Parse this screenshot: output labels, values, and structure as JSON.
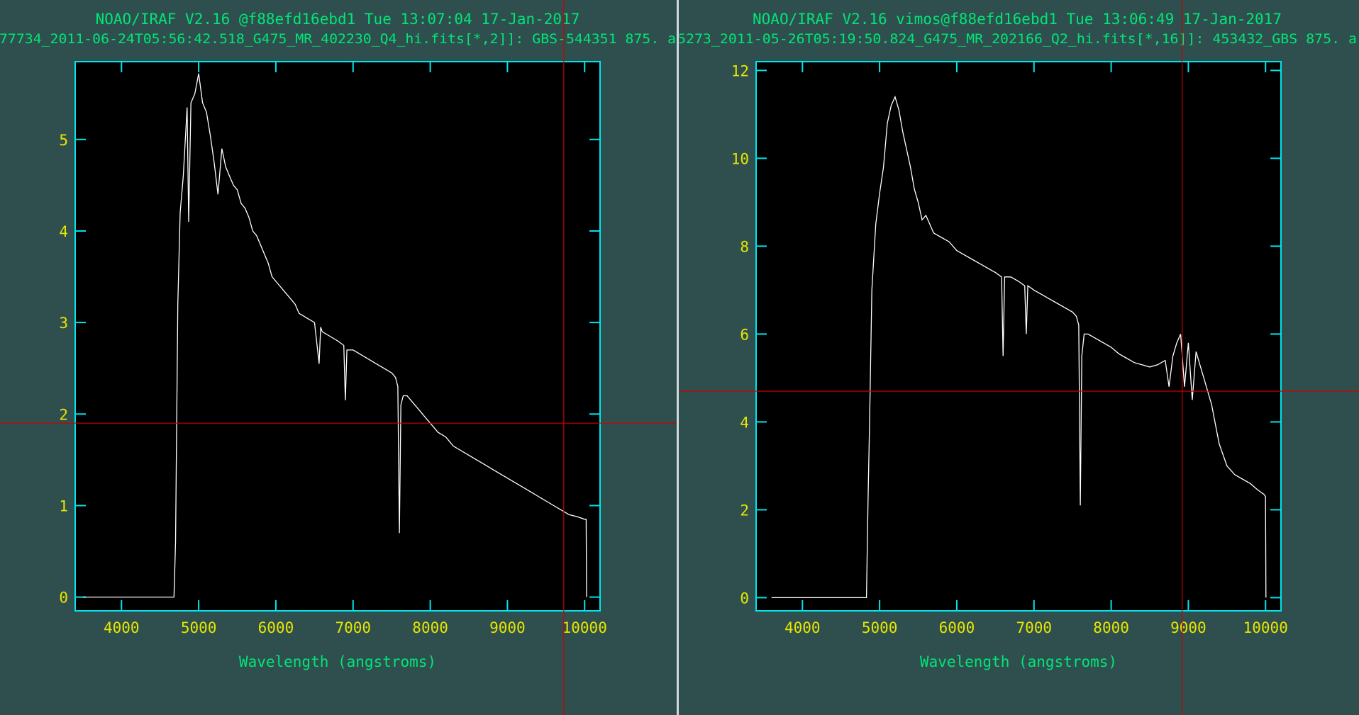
{
  "panels": [
    {
      "header": "NOAO/IRAF V2.16 @f88efd16ebd1 Tue 13:07:04 17-Jan-2017",
      "subtitle": "77734_2011-06-24T05:56:42.518_G475_MR_402230_Q4_hi.fits[*,2]]: GBS-544351 875. a",
      "xlabel": "Wavelength (angstroms)",
      "xticks": [
        "4000",
        "5000",
        "6000",
        "7000",
        "8000",
        "9000",
        "10000"
      ],
      "yticks": [
        "0",
        "1",
        "2",
        "3",
        "4",
        "5"
      ],
      "cursor": {
        "x": 9730,
        "y": 1.9
      }
    },
    {
      "header": "NOAO/IRAF V2.16 vimos@f88efd16ebd1 Tue 13:06:49 17-Jan-2017",
      "subtitle": "5273_2011-05-26T05:19:50.824_G475_MR_202166_Q2_hi.fits[*,16]]: 453432_GBS 875. a",
      "xlabel": "Wavelength (angstroms)",
      "xticks": [
        "4000",
        "5000",
        "6000",
        "7000",
        "8000",
        "9000",
        "10000"
      ],
      "yticks": [
        "0",
        "2",
        "4",
        "6",
        "8",
        "10",
        "12"
      ],
      "cursor": {
        "x": 8920,
        "y": 4.7
      }
    }
  ],
  "colors": {
    "background": "#2f4f4f",
    "plot_area": "#000000",
    "frame": "#00e5ee",
    "tick_label": "#e6e600",
    "header_text": "#00e676",
    "xlabel_text": "#00e676",
    "data_line": "#ffffff",
    "cursor": "#cc0000"
  },
  "chart_data": [
    {
      "type": "line",
      "xlim": [
        3400,
        10200
      ],
      "ylim": [
        -0.15,
        5.85
      ],
      "x": [
        3500,
        4000,
        4500,
        4680,
        4700,
        4730,
        4760,
        4800,
        4850,
        4870,
        4900,
        4950,
        5000,
        5050,
        5100,
        5150,
        5200,
        5250,
        5300,
        5350,
        5400,
        5450,
        5500,
        5550,
        5600,
        5650,
        5700,
        5750,
        5800,
        5850,
        5900,
        5950,
        6000,
        6050,
        6100,
        6150,
        6200,
        6250,
        6300,
        6400,
        6500,
        6560,
        6580,
        6600,
        6700,
        6800,
        6880,
        6900,
        6920,
        7000,
        7100,
        7200,
        7300,
        7400,
        7500,
        7550,
        7580,
        7600,
        7620,
        7650,
        7700,
        7750,
        7800,
        7850,
        7900,
        7950,
        8000,
        8100,
        8200,
        8300,
        8400,
        8500,
        8600,
        8700,
        8800,
        8900,
        9000,
        9100,
        9200,
        9300,
        9400,
        9500,
        9600,
        9700,
        9800,
        9900,
        10000,
        10020,
        10025
      ],
      "y": [
        0,
        0,
        0,
        0,
        0.6,
        3.2,
        4.2,
        4.6,
        5.35,
        4.1,
        5.4,
        5.5,
        5.72,
        5.4,
        5.3,
        5.05,
        4.75,
        4.4,
        4.9,
        4.7,
        4.6,
        4.5,
        4.45,
        4.3,
        4.25,
        4.15,
        4.0,
        3.95,
        3.85,
        3.75,
        3.65,
        3.5,
        3.45,
        3.4,
        3.35,
        3.3,
        3.25,
        3.2,
        3.1,
        3.05,
        3.0,
        2.55,
        2.95,
        2.9,
        2.85,
        2.8,
        2.75,
        2.15,
        2.7,
        2.7,
        2.65,
        2.6,
        2.55,
        2.5,
        2.45,
        2.4,
        2.3,
        0.7,
        2.1,
        2.2,
        2.2,
        2.15,
        2.1,
        2.05,
        2.0,
        1.95,
        1.9,
        1.8,
        1.75,
        1.65,
        1.6,
        1.55,
        1.5,
        1.45,
        1.4,
        1.35,
        1.3,
        1.25,
        1.2,
        1.15,
        1.1,
        1.05,
        1.0,
        0.95,
        0.9,
        0.88,
        0.85,
        0.85,
        0
      ]
    },
    {
      "type": "line",
      "xlim": [
        3400,
        10200
      ],
      "ylim": [
        -0.3,
        12.2
      ],
      "x": [
        3600,
        4000,
        4500,
        4830,
        4850,
        4870,
        4900,
        4950,
        5000,
        5050,
        5100,
        5150,
        5200,
        5250,
        5300,
        5350,
        5400,
        5450,
        5500,
        5550,
        5600,
        5650,
        5700,
        5800,
        5900,
        6000,
        6100,
        6200,
        6300,
        6400,
        6500,
        6580,
        6600,
        6620,
        6700,
        6800,
        6880,
        6900,
        6920,
        7000,
        7100,
        7200,
        7300,
        7400,
        7500,
        7550,
        7580,
        7600,
        7620,
        7650,
        7700,
        7800,
        7900,
        8000,
        8100,
        8200,
        8300,
        8400,
        8500,
        8600,
        8700,
        8750,
        8800,
        8850,
        8900,
        8950,
        9000,
        9050,
        9100,
        9150,
        9200,
        9300,
        9400,
        9500,
        9600,
        9700,
        9800,
        9900,
        9980,
        10000,
        10005
      ],
      "y": [
        0,
        0,
        0,
        0,
        2.2,
        4.0,
        7.0,
        8.5,
        9.2,
        9.8,
        10.8,
        11.2,
        11.4,
        11.1,
        10.6,
        10.2,
        9.8,
        9.3,
        9.0,
        8.6,
        8.7,
        8.5,
        8.3,
        8.2,
        8.1,
        7.9,
        7.8,
        7.7,
        7.6,
        7.5,
        7.4,
        7.3,
        5.5,
        7.3,
        7.3,
        7.2,
        7.1,
        6.0,
        7.1,
        7.0,
        6.9,
        6.8,
        6.7,
        6.6,
        6.5,
        6.4,
        6.2,
        2.1,
        5.5,
        6.0,
        6.0,
        5.9,
        5.8,
        5.7,
        5.55,
        5.45,
        5.35,
        5.3,
        5.25,
        5.3,
        5.4,
        4.8,
        5.5,
        5.8,
        6.0,
        4.8,
        5.8,
        4.5,
        5.6,
        5.3,
        5.0,
        4.4,
        3.5,
        3.0,
        2.8,
        2.7,
        2.6,
        2.45,
        2.35,
        2.3,
        0
      ]
    }
  ]
}
